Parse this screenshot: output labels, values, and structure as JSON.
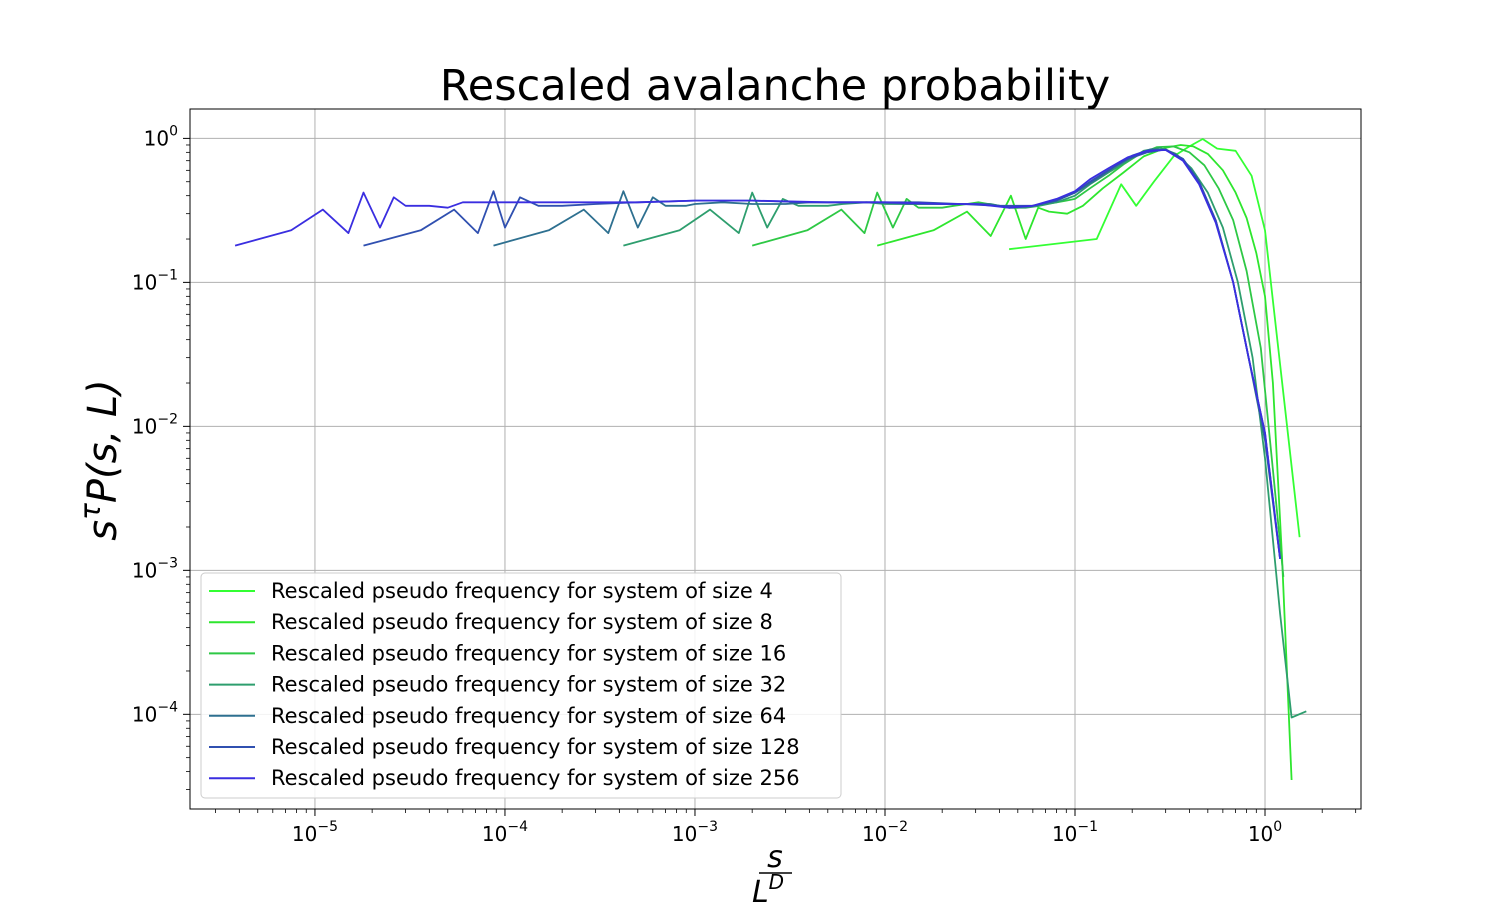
{
  "chart_data": {
    "type": "line",
    "title": "Rescaled avalanche probability",
    "xlabel": {
      "numerator": "s",
      "denominator_base": "L",
      "denominator_exp": "D"
    },
    "ylabel": {
      "base": "s",
      "sup": "τ",
      "rest": "P(s, L)"
    },
    "x_scale": "log",
    "y_scale": "log",
    "xlim": [
      2.2e-06,
      3.2
    ],
    "ylim": [
      2.2e-05,
      1.6
    ],
    "grid": true,
    "legend_position": "lower-left",
    "x_ticks": [
      {
        "value": 1e-05,
        "base": "10",
        "exp": "−5"
      },
      {
        "value": 0.0001,
        "base": "10",
        "exp": "−4"
      },
      {
        "value": 0.001,
        "base": "10",
        "exp": "−3"
      },
      {
        "value": 0.01,
        "base": "10",
        "exp": "−2"
      },
      {
        "value": 0.1,
        "base": "10",
        "exp": "−1"
      },
      {
        "value": 1,
        "base": "10",
        "exp": "0"
      }
    ],
    "y_ticks": [
      {
        "value": 1,
        "base": "10",
        "exp": "0"
      },
      {
        "value": 0.1,
        "base": "10",
        "exp": "−1"
      },
      {
        "value": 0.01,
        "base": "10",
        "exp": "−2"
      },
      {
        "value": 0.001,
        "base": "10",
        "exp": "−3"
      },
      {
        "value": 0.0001,
        "base": "10",
        "exp": "−4"
      }
    ],
    "series": [
      {
        "name": "Rescaled pseudo frequency for system of size 4",
        "color": "#33ff33",
        "x": [
          0.045,
          0.13,
          0.175,
          0.21,
          0.26,
          0.33,
          0.4,
          0.47,
          0.56,
          0.7,
          0.85,
          1.0,
          1.16,
          1.52
        ],
        "y": [
          0.17,
          0.2,
          0.48,
          0.34,
          0.5,
          0.75,
          0.88,
          0.99,
          0.85,
          0.82,
          0.55,
          0.23,
          0.04,
          0.0017
        ]
      },
      {
        "name": "Rescaled pseudo frequency for system of size 8",
        "color": "#2ee62e",
        "x": [
          0.0091,
          0.018,
          0.027,
          0.036,
          0.046,
          0.055,
          0.064,
          0.073,
          0.091,
          0.11,
          0.14,
          0.18,
          0.23,
          0.3,
          0.36,
          0.42,
          0.5,
          0.6,
          0.7,
          0.8,
          0.9,
          1.0,
          1.1,
          1.23,
          1.38
        ],
        "y": [
          0.18,
          0.23,
          0.31,
          0.21,
          0.4,
          0.2,
          0.33,
          0.31,
          0.3,
          0.34,
          0.45,
          0.58,
          0.75,
          0.86,
          0.9,
          0.88,
          0.78,
          0.6,
          0.42,
          0.28,
          0.16,
          0.08,
          0.02,
          0.0012,
          3.5e-05
        ]
      },
      {
        "name": "Rescaled pseudo frequency for system of size 16",
        "color": "#2ec845",
        "x": [
          0.002,
          0.0039,
          0.0059,
          0.0078,
          0.0091,
          0.011,
          0.013,
          0.015,
          0.017,
          0.02,
          0.023,
          0.027,
          0.031,
          0.035,
          0.04,
          0.045,
          0.05,
          0.06,
          0.07,
          0.08,
          0.09,
          0.1,
          0.12,
          0.15,
          0.18,
          0.22,
          0.27,
          0.33,
          0.4,
          0.48,
          0.57,
          0.68,
          0.8,
          0.95,
          1.1,
          1.25
        ],
        "y": [
          0.18,
          0.23,
          0.32,
          0.22,
          0.42,
          0.24,
          0.38,
          0.33,
          0.33,
          0.33,
          0.34,
          0.35,
          0.36,
          0.35,
          0.34,
          0.33,
          0.33,
          0.34,
          0.35,
          0.36,
          0.37,
          0.38,
          0.45,
          0.55,
          0.66,
          0.78,
          0.87,
          0.88,
          0.8,
          0.65,
          0.45,
          0.27,
          0.12,
          0.035,
          0.005,
          0.0009
        ]
      },
      {
        "name": "Rescaled pseudo frequency for system of size 32",
        "color": "#2e9e6e",
        "x": [
          0.00042,
          0.00083,
          0.0012,
          0.0017,
          0.002,
          0.0024,
          0.0029,
          0.0035,
          0.0042,
          0.005,
          0.006,
          0.008,
          0.01,
          0.013,
          0.017,
          0.022,
          0.028,
          0.036,
          0.045,
          0.055,
          0.065,
          0.08,
          0.1,
          0.12,
          0.15,
          0.19,
          0.23,
          0.28,
          0.34,
          0.41,
          0.5,
          0.6,
          0.72,
          0.86,
          1.0,
          1.2,
          1.38,
          1.65
        ],
        "y": [
          0.18,
          0.23,
          0.32,
          0.22,
          0.42,
          0.24,
          0.38,
          0.34,
          0.34,
          0.34,
          0.35,
          0.36,
          0.35,
          0.35,
          0.35,
          0.35,
          0.35,
          0.35,
          0.33,
          0.33,
          0.34,
          0.36,
          0.4,
          0.48,
          0.58,
          0.7,
          0.82,
          0.86,
          0.78,
          0.62,
          0.42,
          0.24,
          0.1,
          0.03,
          0.006,
          0.0005,
          9.5e-05,
          0.000105
        ]
      },
      {
        "name": "Rescaled pseudo frequency for system of size 64",
        "color": "#2e7090",
        "x": [
          8.7e-05,
          0.00017,
          0.00026,
          0.00035,
          0.00042,
          0.0005,
          0.0006,
          0.0007,
          0.0008,
          0.0009,
          0.001,
          0.0014,
          0.002,
          0.003,
          0.004,
          0.006,
          0.009,
          0.013,
          0.018,
          0.025,
          0.035,
          0.045,
          0.06,
          0.08,
          0.1,
          0.13,
          0.16,
          0.2,
          0.25,
          0.3,
          0.37,
          0.45,
          0.55,
          0.68,
          0.82,
          1.0,
          1.2
        ],
        "y": [
          0.18,
          0.23,
          0.32,
          0.22,
          0.43,
          0.24,
          0.39,
          0.34,
          0.34,
          0.34,
          0.35,
          0.36,
          0.35,
          0.35,
          0.36,
          0.36,
          0.36,
          0.35,
          0.35,
          0.35,
          0.35,
          0.33,
          0.34,
          0.37,
          0.42,
          0.52,
          0.63,
          0.76,
          0.84,
          0.83,
          0.72,
          0.5,
          0.27,
          0.1,
          0.03,
          0.008,
          0.0012
        ]
      },
      {
        "name": "Rescaled pseudo frequency for system of size 128",
        "color": "#3050b0",
        "x": [
          1.8e-05,
          3.6e-05,
          5.4e-05,
          7.2e-05,
          8.7e-05,
          0.0001,
          0.00012,
          0.00015,
          0.0002,
          0.0003,
          0.0005,
          0.001,
          0.002,
          0.004,
          0.008,
          0.015,
          0.025,
          0.04,
          0.06,
          0.08,
          0.1,
          0.12,
          0.15,
          0.19,
          0.24,
          0.3,
          0.37,
          0.45,
          0.55,
          0.68,
          0.82,
          1.0,
          1.2
        ],
        "y": [
          0.18,
          0.23,
          0.32,
          0.22,
          0.43,
          0.24,
          0.39,
          0.34,
          0.34,
          0.35,
          0.36,
          0.37,
          0.37,
          0.36,
          0.36,
          0.36,
          0.35,
          0.34,
          0.34,
          0.37,
          0.42,
          0.5,
          0.6,
          0.72,
          0.8,
          0.84,
          0.72,
          0.5,
          0.27,
          0.1,
          0.03,
          0.009,
          0.0012
        ]
      },
      {
        "name": "Rescaled pseudo frequency for system of size 256",
        "color": "#3a2ee0",
        "x": [
          3.8e-06,
          7.5e-06,
          1.1e-05,
          1.5e-05,
          1.8e-05,
          2.2e-05,
          2.6e-05,
          3e-05,
          4e-05,
          5e-05,
          6e-05,
          0.0001,
          0.0002,
          0.0005,
          0.001,
          0.002,
          0.005,
          0.01,
          0.02,
          0.03,
          0.045,
          0.06,
          0.08,
          0.1,
          0.12,
          0.15,
          0.19,
          0.24,
          0.3,
          0.37,
          0.45,
          0.55,
          0.68,
          0.82,
          1.0,
          1.2
        ],
        "y": [
          0.18,
          0.23,
          0.32,
          0.22,
          0.42,
          0.24,
          0.39,
          0.34,
          0.34,
          0.33,
          0.36,
          0.36,
          0.36,
          0.36,
          0.37,
          0.37,
          0.36,
          0.36,
          0.35,
          0.35,
          0.33,
          0.34,
          0.38,
          0.43,
          0.52,
          0.62,
          0.74,
          0.82,
          0.83,
          0.7,
          0.48,
          0.26,
          0.1,
          0.03,
          0.009,
          0.0012
        ]
      }
    ]
  }
}
